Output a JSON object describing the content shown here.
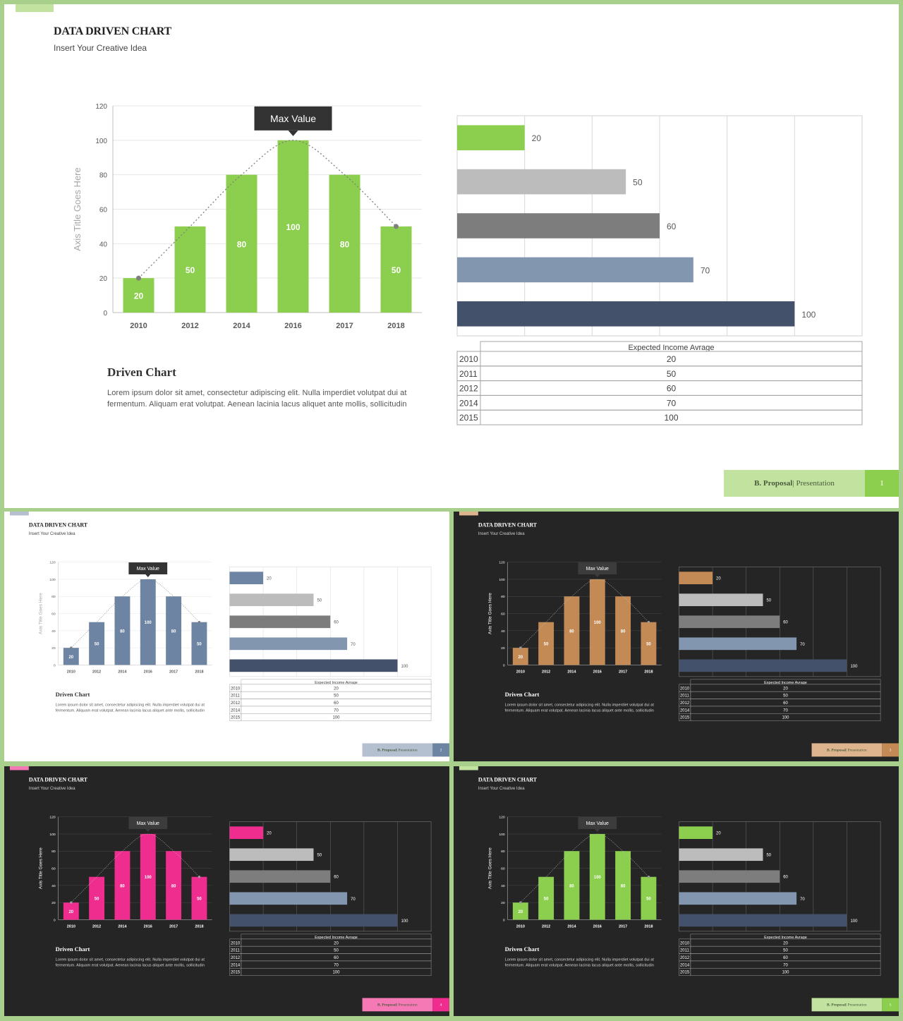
{
  "slide": {
    "title": "DATA DRIVEN CHART",
    "subtitle": "Insert Your Creative Idea",
    "section_title": "Driven Chart",
    "section_text": "Lorem ipsum dolor sit amet, consectetur adipiscing elit. Nulla imperdiet volutpat dui at fermentum.  Aliquam erat volutpat. Aenean lacinia lacus aliquet ante mollis, sollicitudin",
    "footer_brand": "B. Proposal",
    "footer_sep": "|",
    "footer_kind": "Presentation"
  },
  "chart_data": [
    {
      "type": "bar",
      "categories": [
        "2010",
        "2012",
        "2014",
        "2016",
        "2017",
        "2018"
      ],
      "values": [
        20,
        50,
        80,
        100,
        80,
        50
      ],
      "ylabel": "Axis Title Goes Here",
      "ylim": [
        0,
        120
      ],
      "yticks": [
        0,
        20,
        40,
        60,
        80,
        100,
        120
      ],
      "annotation": "Max Value",
      "grid": true
    },
    {
      "type": "bar",
      "orientation": "horizontal",
      "values": [
        20,
        50,
        60,
        70,
        100
      ],
      "xlim": [
        0,
        120
      ],
      "colors": [
        "accent",
        "#bcbcbc",
        "#7d7d7d",
        "#8296b0",
        "#44516a"
      ]
    },
    {
      "type": "table",
      "header": "Expected Income Avrage",
      "rows": [
        {
          "year": "2010",
          "value": "20"
        },
        {
          "year": "2011",
          "value": "50"
        },
        {
          "year": "2012",
          "value": "60"
        },
        {
          "year": "2014",
          "value": "70"
        },
        {
          "year": "2015",
          "value": "100"
        }
      ]
    }
  ],
  "slides": [
    {
      "number": "1",
      "theme": "light",
      "accent": "#8ccf4e",
      "tab": "#c2e3a0",
      "footer_bg": "#c2e3a0",
      "footer_num_bg": "#8ccf4e"
    },
    {
      "number": "2",
      "theme": "light",
      "accent": "#6e84a3",
      "tab": "#b4bfd0",
      "footer_bg": "#b4bfd0",
      "footer_num_bg": "#6e84a3"
    },
    {
      "number": "3",
      "theme": "dark",
      "accent": "#c38a55",
      "tab": "#ddb48e",
      "footer_bg": "#ddb48e",
      "footer_num_bg": "#c38a55"
    },
    {
      "number": "4",
      "theme": "dark",
      "accent": "#ee2d8f",
      "tab": "#f479b5",
      "footer_bg": "#f479b5",
      "footer_num_bg": "#ee2d8f"
    },
    {
      "number": "5",
      "theme": "dark",
      "accent": "#8ccf4e",
      "tab": "#c2e3a0",
      "footer_bg": "#c2e3a0",
      "footer_num_bg": "#8ccf4e"
    }
  ]
}
